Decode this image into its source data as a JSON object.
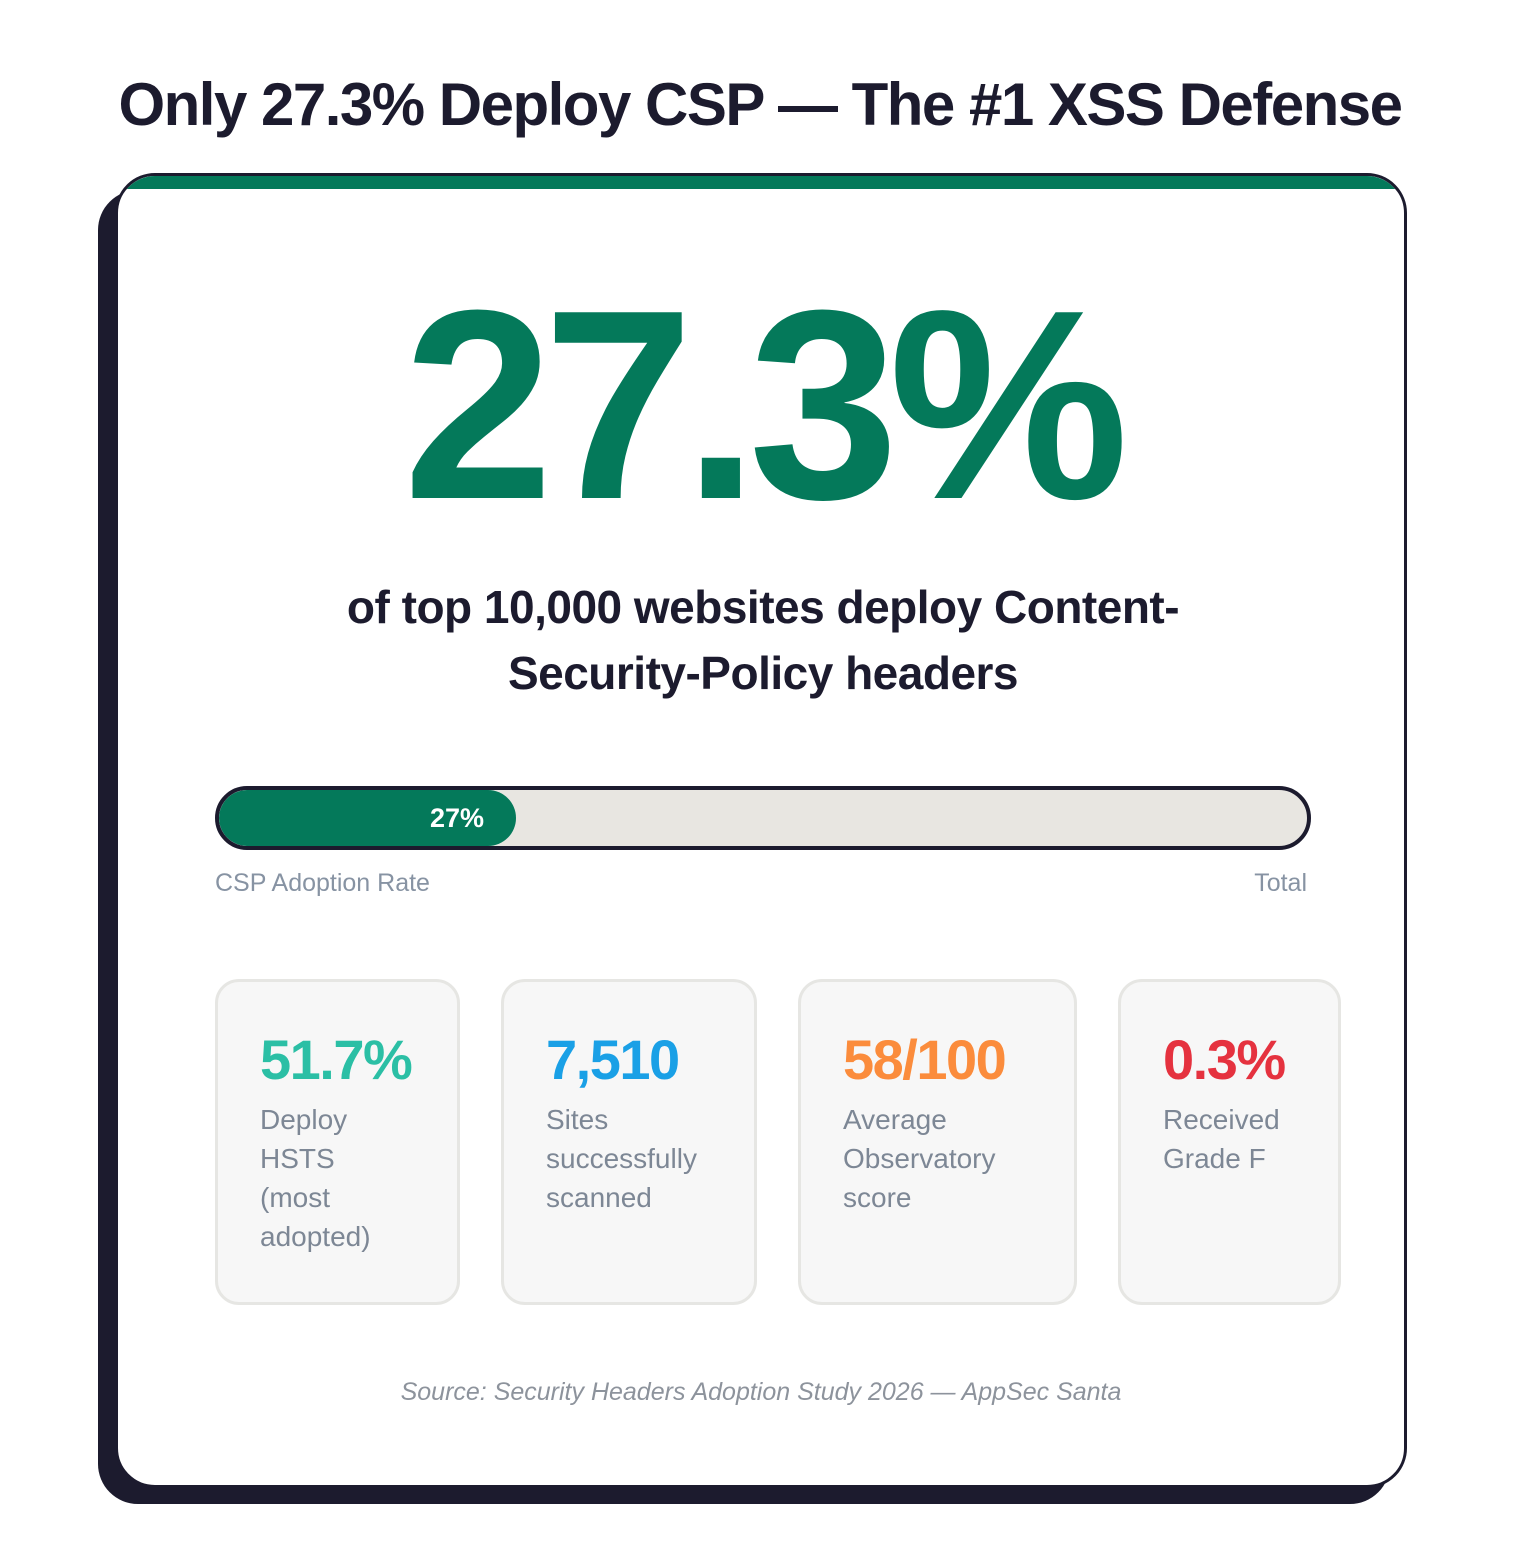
{
  "title": "Only 27.3% Deploy CSP — The #1 XSS Defense",
  "headline_value": "27.3%",
  "subtitle": "of top 10,000 websites deploy Content-Security-Policy headers",
  "progress": {
    "percent": 27.3,
    "label": "27%",
    "left_label": "CSP Adoption Rate",
    "right_label": "Total"
  },
  "stats": [
    {
      "value": "51.7%",
      "desc": "Deploy HSTS (most adopted)",
      "color": "#2bbfa5"
    },
    {
      "value": "7,510",
      "desc": "Sites successfully scanned",
      "color": "#1aa0e6"
    },
    {
      "value": "58/100",
      "desc": "Average Observatory score",
      "color": "#fb8c3c"
    },
    {
      "value": "0.3%",
      "desc": "Received Grade F",
      "color": "#e5323f"
    }
  ],
  "source": "Source: Security Headers Adoption Study 2026 — AppSec Santa",
  "colors": {
    "accent": "#04795a",
    "dark": "#1c1b2e",
    "track": "#e8e6e1"
  }
}
